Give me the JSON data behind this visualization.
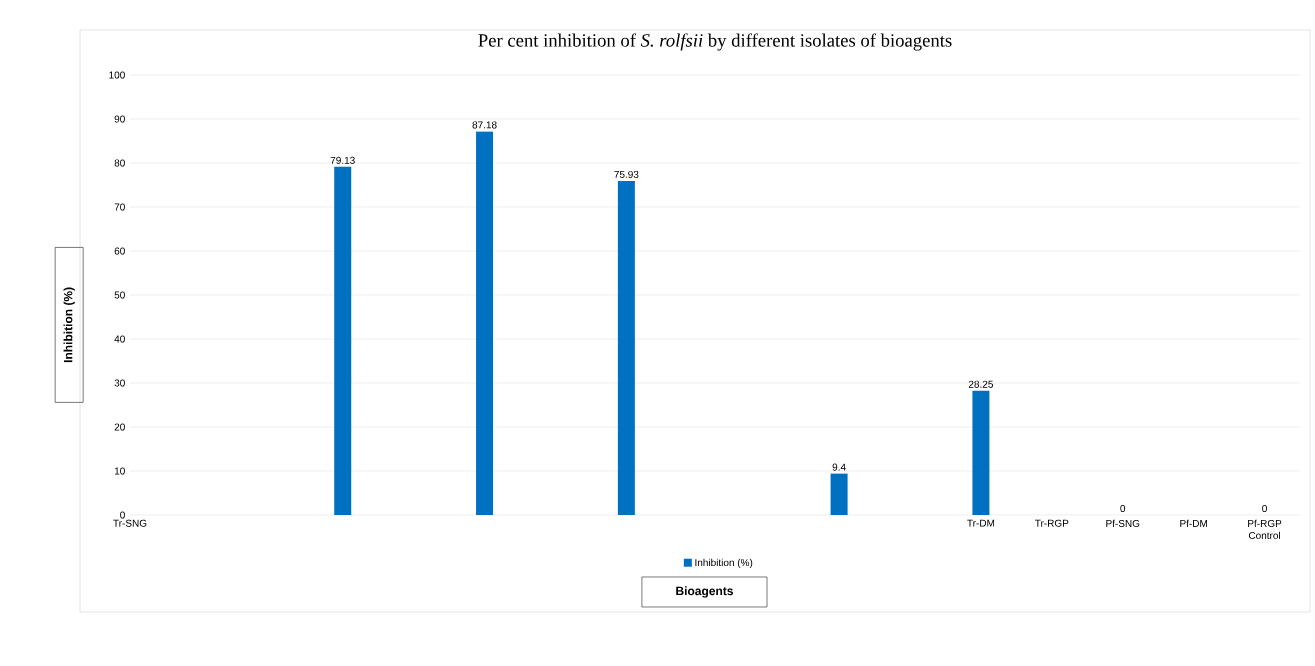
{
  "chart_data": {
    "type": "bar",
    "title": "Per cent inhibition of *S. rolfsii* by different isolates of bioagents",
    "xlabel": "Bioagents",
    "ylabel": "Inhibition (%)",
    "categories": [
      "Tr-SNG",
      null,
      null,
      null,
      null,
      null,
      null,
      null,
      null,
      null,
      null,
      null,
      "Tr-DM",
      "Tr-RGP",
      "Pf-SNG",
      "Pf-DM",
      "Pf-RGP Control"
    ],
    "series": [
      {
        "name": "Inhibition (%)",
        "color": "#0070c0",
        "values": [
          null,
          null,
          null,
          79.13,
          null,
          87.18,
          null,
          75.93,
          null,
          null,
          9.4,
          null,
          28.25,
          null,
          0,
          null,
          0
        ],
        "value_labels": [
          null,
          null,
          null,
          "79.13",
          null,
          "87.18",
          null,
          "75.93",
          null,
          null,
          "9.4",
          null,
          "28.25",
          null,
          "0",
          null,
          "0"
        ]
      }
    ],
    "ylim": [
      0,
      100
    ],
    "yticks": [
      0,
      10,
      20,
      30,
      40,
      50,
      60,
      70,
      80,
      90,
      100
    ],
    "grid": "y",
    "legend": "bottom"
  }
}
